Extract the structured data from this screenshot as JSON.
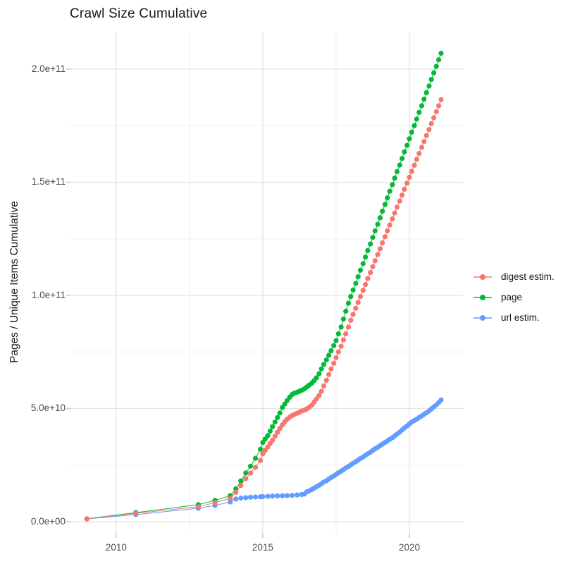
{
  "title": "Crawl Size Cumulative",
  "y_axis_title": "Pages / Unique Items Cumulative",
  "legend": {
    "position": "right",
    "items": [
      {
        "label": "digest estim.",
        "color": "#F8766D"
      },
      {
        "label": "page",
        "color": "#00BA38"
      },
      {
        "label": "url estim.",
        "color": "#619CFF"
      }
    ]
  },
  "colors": {
    "background": "#ffffff",
    "grid_major": "#e4e4e4",
    "grid_minor": "#f0f0f0",
    "tick_mark": "#c9c9c9",
    "axis_text": "#4d4d4d",
    "title_text": "#1a1a1a",
    "series_red": "#F8766D",
    "series_green": "#00BA38",
    "series_blue": "#619CFF"
  },
  "chart_data": {
    "type": "line",
    "marker": "circle",
    "title": "Crawl Size Cumulative",
    "xlabel": "",
    "ylabel": "Pages / Unique Items Cumulative",
    "grid": true,
    "legend_position": "right",
    "x_axis": {
      "ticks": [
        2010,
        2015,
        2020
      ],
      "tick_labels": [
        "2010",
        "2015",
        "2020"
      ],
      "minor_ticks": [
        2012.5,
        2017.5
      ],
      "range": [
        2008.44,
        2021.85
      ]
    },
    "y_axis": {
      "ticks": [
        0,
        50000000000.0,
        100000000000.0,
        150000000000.0,
        200000000000.0
      ],
      "tick_labels": [
        "0.0e+00",
        "5.0e+10",
        "1.0e+11",
        "1.5e+11",
        "2.0e+11"
      ],
      "minor_ticks": [
        25000000000.0,
        75000000000.0,
        125000000000.0,
        175000000000.0
      ],
      "range": [
        -5300000000.0,
        216500000000.0
      ]
    },
    "series": [
      {
        "name": "digest estim.",
        "color": "#F8766D",
        "points": [
          [
            2009.0,
            1200000000.0
          ],
          [
            2010.67,
            3700000000.0
          ],
          [
            2012.8,
            6600000000.0
          ],
          [
            2013.37,
            8400000000.0
          ],
          [
            2013.89,
            10300000000.0
          ],
          [
            2014.08,
            13000000000.0
          ],
          [
            2014.25,
            16000000000.0
          ],
          [
            2014.42,
            19000000000.0
          ],
          [
            2014.58,
            21500000000.0
          ],
          [
            2014.75,
            24000000000.0
          ],
          [
            2014.92,
            27000000000.0
          ],
          [
            2015.0,
            30000000000.0
          ],
          [
            2015.08,
            31500000000.0
          ],
          [
            2015.17,
            33000000000.0
          ],
          [
            2015.25,
            34500000000.0
          ],
          [
            2015.33,
            36000000000.0
          ],
          [
            2015.42,
            37800000000.0
          ],
          [
            2015.5,
            39500000000.0
          ],
          [
            2015.58,
            41200000000.0
          ],
          [
            2015.67,
            42800000000.0
          ],
          [
            2015.75,
            44200000000.0
          ],
          [
            2015.83,
            45300000000.0
          ],
          [
            2015.92,
            46200000000.0
          ],
          [
            2016.0,
            46900000000.0
          ],
          [
            2016.08,
            47400000000.0
          ],
          [
            2016.17,
            47900000000.0
          ],
          [
            2016.25,
            48400000000.0
          ],
          [
            2016.33,
            48900000000.0
          ],
          [
            2016.42,
            49300000000.0
          ],
          [
            2016.5,
            49800000000.0
          ],
          [
            2016.58,
            50500000000.0
          ],
          [
            2016.67,
            51500000000.0
          ],
          [
            2016.75,
            52800000000.0
          ],
          [
            2016.83,
            54200000000.0
          ],
          [
            2016.92,
            55800000000.0
          ],
          [
            2017.0,
            57600000000.0
          ],
          [
            2017.08,
            60000000000.0
          ],
          [
            2017.17,
            62500000000.0
          ],
          [
            2017.25,
            65000000000.0
          ],
          [
            2017.33,
            67500000000.0
          ],
          [
            2017.42,
            70000000000.0
          ],
          [
            2017.5,
            72500000000.0
          ],
          [
            2017.58,
            75000000000.0
          ],
          [
            2017.67,
            77500000000.0
          ],
          [
            2017.75,
            80300000000.0
          ],
          [
            2017.83,
            83000000000.0
          ],
          [
            2017.92,
            86000000000.0
          ],
          [
            2018.0,
            89000000000.0
          ],
          [
            2018.08,
            91600000000.0
          ],
          [
            2018.17,
            94300000000.0
          ],
          [
            2018.25,
            96900000000.0
          ],
          [
            2018.33,
            99500000000.0
          ],
          [
            2018.42,
            102200000000.0
          ],
          [
            2018.5,
            104800000000.0
          ],
          [
            2018.58,
            107400000000.0
          ],
          [
            2018.67,
            110100000000.0
          ],
          [
            2018.75,
            112700000000.0
          ],
          [
            2018.83,
            115300000000.0
          ],
          [
            2018.92,
            118000000000.0
          ],
          [
            2019.0,
            120600000000.0
          ],
          [
            2019.08,
            123200000000.0
          ],
          [
            2019.17,
            125900000000.0
          ],
          [
            2019.25,
            128500000000.0
          ],
          [
            2019.33,
            131100000000.0
          ],
          [
            2019.42,
            133800000000.0
          ],
          [
            2019.5,
            136400000000.0
          ],
          [
            2019.58,
            139000000000.0
          ],
          [
            2019.67,
            141700000000.0
          ],
          [
            2019.75,
            144300000000.0
          ],
          [
            2019.83,
            146900000000.0
          ],
          [
            2019.92,
            149600000000.0
          ],
          [
            2020.0,
            152200000000.0
          ],
          [
            2020.08,
            154800000000.0
          ],
          [
            2020.17,
            157500000000.0
          ],
          [
            2020.25,
            160100000000.0
          ],
          [
            2020.33,
            162700000000.0
          ],
          [
            2020.42,
            165400000000.0
          ],
          [
            2020.5,
            168000000000.0
          ],
          [
            2020.58,
            170600000000.0
          ],
          [
            2020.67,
            173300000000.0
          ],
          [
            2020.75,
            175900000000.0
          ],
          [
            2020.83,
            178500000000.0
          ],
          [
            2020.92,
            181200000000.0
          ],
          [
            2021.0,
            183800000000.0
          ],
          [
            2021.08,
            186500000000.0
          ]
        ]
      },
      {
        "name": "page",
        "color": "#00BA38",
        "points": [
          [
            2009.0,
            1300000000.0
          ],
          [
            2010.67,
            4000000000.0
          ],
          [
            2012.8,
            7500000000.0
          ],
          [
            2013.37,
            9400000000.0
          ],
          [
            2013.89,
            11500000000.0
          ],
          [
            2014.08,
            14500000000.0
          ],
          [
            2014.25,
            18000000000.0
          ],
          [
            2014.42,
            21500000000.0
          ],
          [
            2014.58,
            24500000000.0
          ],
          [
            2014.75,
            28000000000.0
          ],
          [
            2014.92,
            32000000000.0
          ],
          [
            2015.0,
            35000000000.0
          ],
          [
            2015.08,
            36500000000.0
          ],
          [
            2015.17,
            38000000000.0
          ],
          [
            2015.25,
            40000000000.0
          ],
          [
            2015.33,
            42000000000.0
          ],
          [
            2015.42,
            44000000000.0
          ],
          [
            2015.5,
            46000000000.0
          ],
          [
            2015.58,
            48000000000.0
          ],
          [
            2015.67,
            50500000000.0
          ],
          [
            2015.75,
            52000000000.0
          ],
          [
            2015.83,
            53500000000.0
          ],
          [
            2015.92,
            55000000000.0
          ],
          [
            2016.0,
            56200000000.0
          ],
          [
            2016.08,
            56800000000.0
          ],
          [
            2016.17,
            57200000000.0
          ],
          [
            2016.25,
            57600000000.0
          ],
          [
            2016.33,
            58100000000.0
          ],
          [
            2016.42,
            58700000000.0
          ],
          [
            2016.5,
            59500000000.0
          ],
          [
            2016.58,
            60300000000.0
          ],
          [
            2016.67,
            61200000000.0
          ],
          [
            2016.75,
            62300000000.0
          ],
          [
            2016.83,
            63600000000.0
          ],
          [
            2016.92,
            65400000000.0
          ],
          [
            2017.0,
            67500000000.0
          ],
          [
            2017.08,
            69500000000.0
          ],
          [
            2017.17,
            71500000000.0
          ],
          [
            2017.25,
            73500000000.0
          ],
          [
            2017.33,
            75500000000.0
          ],
          [
            2017.42,
            77800000000.0
          ],
          [
            2017.5,
            80000000000.0
          ],
          [
            2017.58,
            83000000000.0
          ],
          [
            2017.67,
            86000000000.0
          ],
          [
            2017.75,
            89500000000.0
          ],
          [
            2017.83,
            93000000000.0
          ],
          [
            2017.92,
            96500000000.0
          ],
          [
            2018.0,
            99500000000.0
          ],
          [
            2018.08,
            102400000000.0
          ],
          [
            2018.17,
            105300000000.0
          ],
          [
            2018.25,
            108200000000.0
          ],
          [
            2018.33,
            111100000000.0
          ],
          [
            2018.42,
            114000000000.0
          ],
          [
            2018.5,
            116900000000.0
          ],
          [
            2018.58,
            119800000000.0
          ],
          [
            2018.67,
            122700000000.0
          ],
          [
            2018.75,
            125600000000.0
          ],
          [
            2018.83,
            128500000000.0
          ],
          [
            2018.92,
            131400000000.0
          ],
          [
            2019.0,
            134300000000.0
          ],
          [
            2019.08,
            137200000000.0
          ],
          [
            2019.17,
            140200000000.0
          ],
          [
            2019.25,
            143100000000.0
          ],
          [
            2019.33,
            146000000000.0
          ],
          [
            2019.42,
            148900000000.0
          ],
          [
            2019.5,
            151800000000.0
          ],
          [
            2019.58,
            154700000000.0
          ],
          [
            2019.67,
            157600000000.0
          ],
          [
            2019.75,
            160500000000.0
          ],
          [
            2019.83,
            163400000000.0
          ],
          [
            2019.92,
            166300000000.0
          ],
          [
            2020.0,
            169200000000.0
          ],
          [
            2020.08,
            172100000000.0
          ],
          [
            2020.17,
            175000000000.0
          ],
          [
            2020.25,
            177900000000.0
          ],
          [
            2020.33,
            180900000000.0
          ],
          [
            2020.42,
            183800000000.0
          ],
          [
            2020.5,
            186700000000.0
          ],
          [
            2020.58,
            189600000000.0
          ],
          [
            2020.67,
            192500000000.0
          ],
          [
            2020.75,
            195400000000.0
          ],
          [
            2020.83,
            198300000000.0
          ],
          [
            2020.92,
            201200000000.0
          ],
          [
            2021.0,
            204100000000.0
          ],
          [
            2021.08,
            207000000000.0
          ]
        ]
      },
      {
        "name": "url estim.",
        "color": "#619CFF",
        "points": [
          [
            2009.0,
            1200000000.0
          ],
          [
            2010.67,
            3100000000.0
          ],
          [
            2012.8,
            5900000000.0
          ],
          [
            2013.37,
            7200000000.0
          ],
          [
            2013.89,
            8700000000.0
          ],
          [
            2014.08,
            10000000000.0
          ],
          [
            2014.25,
            10400000000.0
          ],
          [
            2014.42,
            10600000000.0
          ],
          [
            2014.58,
            10800000000.0
          ],
          [
            2014.75,
            10900000000.0
          ],
          [
            2014.92,
            11000000000.0
          ],
          [
            2015.0,
            11100000000.0
          ],
          [
            2015.17,
            11200000000.0
          ],
          [
            2015.33,
            11300000000.0
          ],
          [
            2015.5,
            11400000000.0
          ],
          [
            2015.67,
            11450000000.0
          ],
          [
            2015.83,
            11500000000.0
          ],
          [
            2016.0,
            11600000000.0
          ],
          [
            2016.17,
            11800000000.0
          ],
          [
            2016.33,
            12000000000.0
          ],
          [
            2016.42,
            12200000000.0
          ],
          [
            2016.5,
            13200000000.0
          ],
          [
            2016.58,
            13600000000.0
          ],
          [
            2016.67,
            14200000000.0
          ],
          [
            2016.75,
            14800000000.0
          ],
          [
            2016.83,
            15400000000.0
          ],
          [
            2016.92,
            16100000000.0
          ],
          [
            2017.0,
            16800000000.0
          ],
          [
            2017.08,
            17500000000.0
          ],
          [
            2017.17,
            18100000000.0
          ],
          [
            2017.25,
            18800000000.0
          ],
          [
            2017.33,
            19500000000.0
          ],
          [
            2017.42,
            20200000000.0
          ],
          [
            2017.5,
            20900000000.0
          ],
          [
            2017.58,
            21600000000.0
          ],
          [
            2017.67,
            22300000000.0
          ],
          [
            2017.75,
            23000000000.0
          ],
          [
            2017.83,
            23700000000.0
          ],
          [
            2017.92,
            24400000000.0
          ],
          [
            2018.0,
            25100000000.0
          ],
          [
            2018.08,
            25800000000.0
          ],
          [
            2018.17,
            26500000000.0
          ],
          [
            2018.25,
            27200000000.0
          ],
          [
            2018.33,
            27900000000.0
          ],
          [
            2018.42,
            28600000000.0
          ],
          [
            2018.5,
            29300000000.0
          ],
          [
            2018.58,
            30000000000.0
          ],
          [
            2018.67,
            30700000000.0
          ],
          [
            2018.75,
            31500000000.0
          ],
          [
            2018.83,
            32200000000.0
          ],
          [
            2018.92,
            32900000000.0
          ],
          [
            2019.0,
            33600000000.0
          ],
          [
            2019.08,
            34300000000.0
          ],
          [
            2019.17,
            35000000000.0
          ],
          [
            2019.25,
            35700000000.0
          ],
          [
            2019.33,
            36400000000.0
          ],
          [
            2019.42,
            37100000000.0
          ],
          [
            2019.5,
            37900000000.0
          ],
          [
            2019.58,
            38700000000.0
          ],
          [
            2019.67,
            39600000000.0
          ],
          [
            2019.75,
            40500000000.0
          ],
          [
            2019.83,
            41400000000.0
          ],
          [
            2019.92,
            42300000000.0
          ],
          [
            2020.0,
            43200000000.0
          ],
          [
            2020.08,
            44000000000.0
          ],
          [
            2020.17,
            44700000000.0
          ],
          [
            2020.25,
            45300000000.0
          ],
          [
            2020.33,
            46000000000.0
          ],
          [
            2020.42,
            46700000000.0
          ],
          [
            2020.5,
            47400000000.0
          ],
          [
            2020.58,
            48100000000.0
          ],
          [
            2020.67,
            48900000000.0
          ],
          [
            2020.75,
            49800000000.0
          ],
          [
            2020.83,
            50700000000.0
          ],
          [
            2020.92,
            51600000000.0
          ],
          [
            2021.0,
            52600000000.0
          ],
          [
            2021.08,
            53800000000.0
          ]
        ]
      }
    ]
  }
}
